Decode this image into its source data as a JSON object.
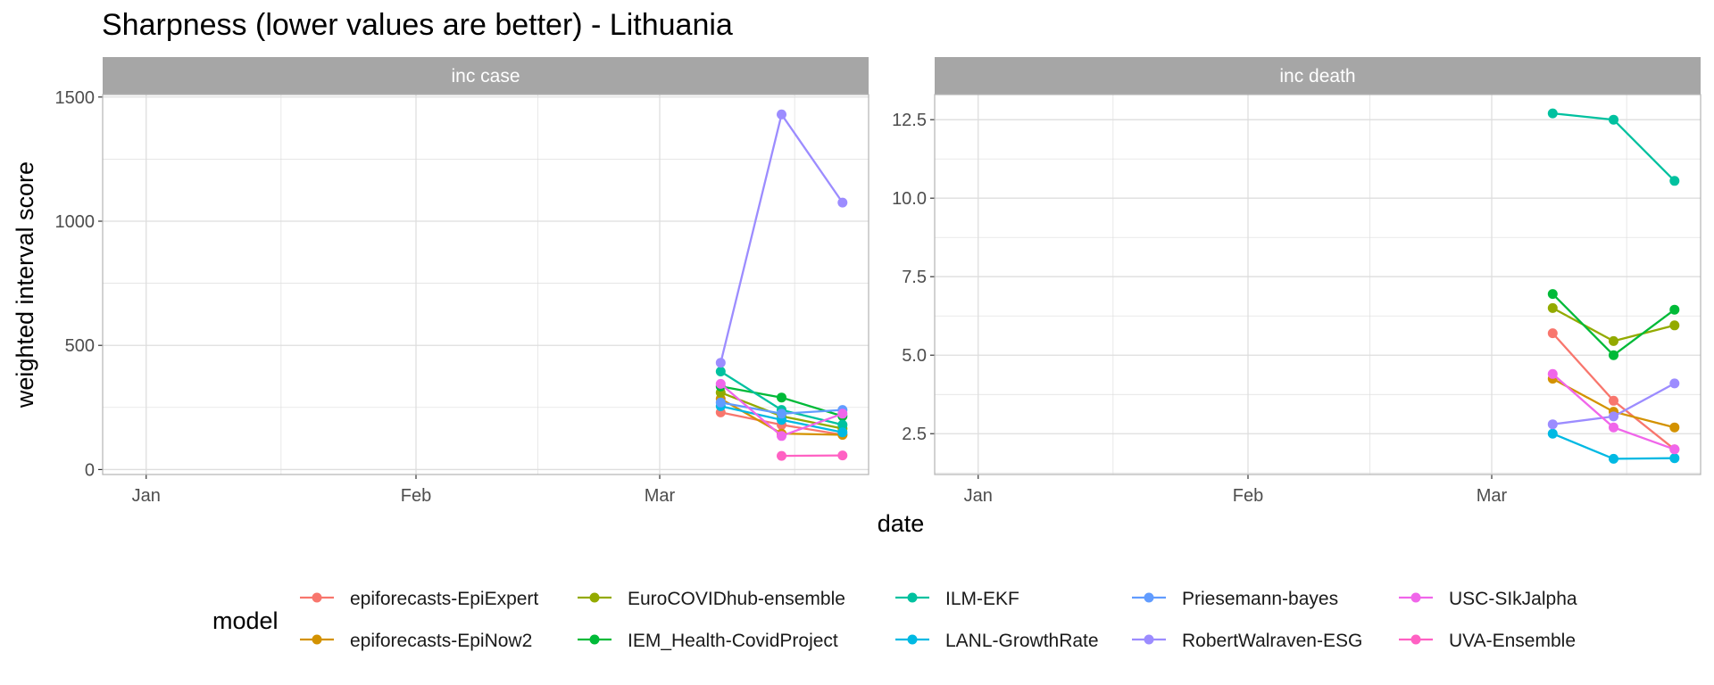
{
  "title": "Sharpness (lower values are better) - Lithuania",
  "xlabel": "date",
  "ylabel": "weighted interval score",
  "legend_title": "model",
  "x_tick_labels": [
    "Jan",
    "Feb",
    "Mar"
  ],
  "chart_data": [
    {
      "type": "line",
      "panel": "inc case",
      "x_range": [
        "2021-01-01",
        "2021-03-31"
      ],
      "ylim": [
        -20,
        1510
      ],
      "y_ticks": [
        0,
        500,
        1000,
        1500
      ],
      "y_tick_labels": [
        "0",
        "500",
        "1000",
        "1500"
      ],
      "grid": true,
      "series": [
        {
          "name": "epiforecasts-EpiExpert",
          "x": [
            "2021-03-08",
            "2021-03-15",
            "2021-03-22"
          ],
          "y": [
            230,
            180,
            140
          ]
        },
        {
          "name": "epiforecasts-EpiNow2",
          "x": [
            "2021-03-08",
            "2021-03-15",
            "2021-03-22"
          ],
          "y": [
            285,
            145,
            140
          ]
        },
        {
          "name": "EuroCOVIDhub-ensemble",
          "x": [
            "2021-03-08",
            "2021-03-15",
            "2021-03-22"
          ],
          "y": [
            310,
            215,
            165
          ]
        },
        {
          "name": "IEM_Health-CovidProject",
          "x": [
            "2021-03-08",
            "2021-03-15",
            "2021-03-22"
          ],
          "y": [
            335,
            290,
            215
          ]
        },
        {
          "name": "ILM-EKF",
          "x": [
            "2021-03-08",
            "2021-03-15",
            "2021-03-22"
          ],
          "y": [
            395,
            240,
            180
          ]
        },
        {
          "name": "LANL-GrowthRate",
          "x": [
            "2021-03-08",
            "2021-03-15",
            "2021-03-22"
          ],
          "y": [
            255,
            200,
            150
          ]
        },
        {
          "name": "Priesemann-bayes",
          "x": [
            "2021-03-08",
            "2021-03-15",
            "2021-03-22"
          ],
          "y": [
            270,
            225,
            240
          ]
        },
        {
          "name": "RobertWalraven-ESG",
          "x": [
            "2021-03-08",
            "2021-03-15",
            "2021-03-22"
          ],
          "y": [
            430,
            1430,
            1075
          ]
        },
        {
          "name": "USC-SIkJalpha",
          "x": [
            "2021-03-08",
            "2021-03-15",
            "2021-03-22"
          ],
          "y": [
            345,
            135,
            225
          ]
        },
        {
          "name": "UVA-Ensemble",
          "x": [
            "2021-03-15",
            "2021-03-22"
          ],
          "y": [
            55,
            57
          ]
        }
      ]
    },
    {
      "type": "line",
      "panel": "inc death",
      "x_range": [
        "2021-01-01",
        "2021-03-31"
      ],
      "ylim": [
        1.2,
        13.3
      ],
      "y_ticks": [
        2.5,
        5.0,
        7.5,
        10.0,
        12.5
      ],
      "y_tick_labels": [
        "2.5",
        "5.0",
        "7.5",
        "10.0",
        "12.5"
      ],
      "grid": true,
      "series": [
        {
          "name": "epiforecasts-EpiExpert",
          "x": [
            "2021-03-08",
            "2021-03-15",
            "2021-03-22"
          ],
          "y": [
            5.7,
            3.55,
            2.0
          ]
        },
        {
          "name": "epiforecasts-EpiNow2",
          "x": [
            "2021-03-08",
            "2021-03-15",
            "2021-03-22"
          ],
          "y": [
            4.25,
            3.2,
            2.7
          ]
        },
        {
          "name": "EuroCOVIDhub-ensemble",
          "x": [
            "2021-03-08",
            "2021-03-15",
            "2021-03-22"
          ],
          "y": [
            6.5,
            5.45,
            5.95
          ]
        },
        {
          "name": "IEM_Health-CovidProject",
          "x": [
            "2021-03-08",
            "2021-03-15",
            "2021-03-22"
          ],
          "y": [
            6.95,
            5.0,
            6.45
          ]
        },
        {
          "name": "ILM-EKF",
          "x": [
            "2021-03-08",
            "2021-03-15",
            "2021-03-22"
          ],
          "y": [
            12.7,
            12.5,
            10.55
          ]
        },
        {
          "name": "LANL-GrowthRate",
          "x": [
            "2021-03-08",
            "2021-03-15",
            "2021-03-22"
          ],
          "y": [
            2.5,
            1.7,
            1.72
          ]
        },
        {
          "name": "RobertWalraven-ESG",
          "x": [
            "2021-03-08",
            "2021-03-15",
            "2021-03-22"
          ],
          "y": [
            2.8,
            3.05,
            4.1
          ]
        },
        {
          "name": "USC-SIkJalpha",
          "x": [
            "2021-03-08",
            "2021-03-15",
            "2021-03-22"
          ],
          "y": [
            4.4,
            2.7,
            2.0
          ]
        }
      ]
    }
  ],
  "legend": {
    "placement": "bottom",
    "items": [
      {
        "label": "epiforecasts-EpiExpert",
        "color": "#F8766D"
      },
      {
        "label": "epiforecasts-EpiNow2",
        "color": "#D39200"
      },
      {
        "label": "EuroCOVIDhub-ensemble",
        "color": "#93AA00"
      },
      {
        "label": "IEM_Health-CovidProject",
        "color": "#00BA38"
      },
      {
        "label": "ILM-EKF",
        "color": "#00C19F"
      },
      {
        "label": "LANL-GrowthRate",
        "color": "#00B9E3"
      },
      {
        "label": "Priesemann-bayes",
        "color": "#619CFF"
      },
      {
        "label": "RobertWalraven-ESG",
        "color": "#9C8CFF"
      },
      {
        "label": "USC-SIkJalpha",
        "color": "#F066EA"
      },
      {
        "label": "UVA-Ensemble",
        "color": "#FF61C3"
      }
    ]
  },
  "colors": {
    "strip_background": "#a6a6a6",
    "grid": "#dedede",
    "panel_border": "#b3b3b3"
  }
}
